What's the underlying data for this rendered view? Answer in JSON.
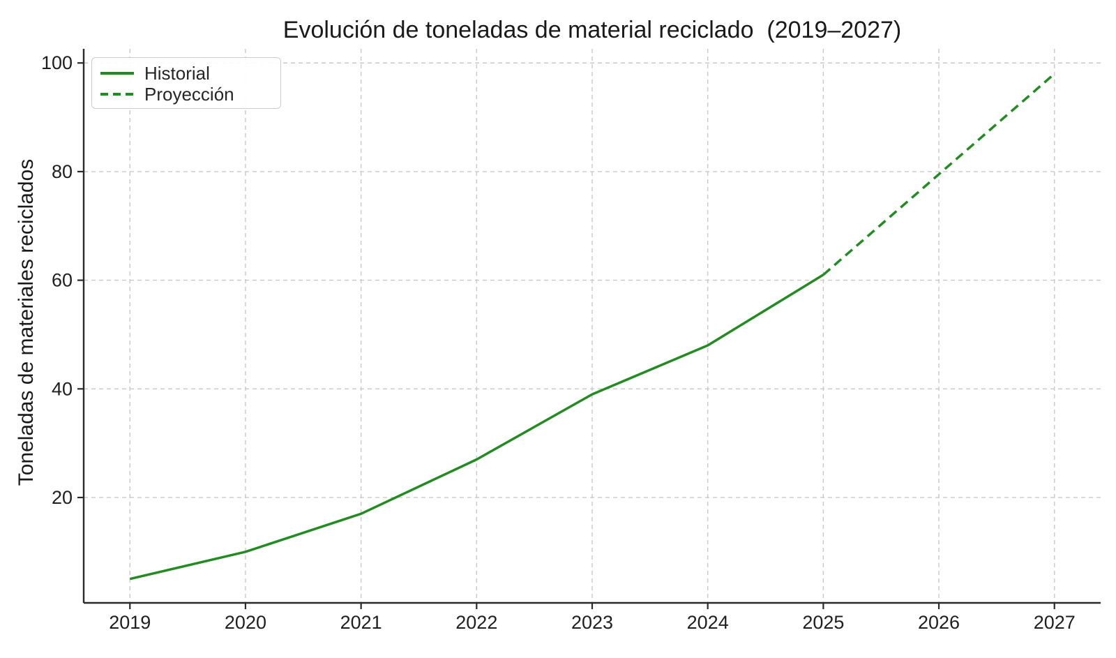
{
  "title": "Evolución de toneladas de material reciclado  (2019–2027)",
  "colors": {
    "line_green": "#228B22",
    "grid": "#c9c9c9",
    "spine": "#2a2a2a",
    "tick_text": "#1f1f1f",
    "legend_border": "#cccccc",
    "background": "#ffffff"
  },
  "chart_data": {
    "type": "line",
    "title": "Evolución de toneladas de material reciclado  (2019–2027)",
    "xlabel": "",
    "ylabel": "Toneladas de materiales reciclados",
    "categories": [
      2019,
      2020,
      2021,
      2022,
      2023,
      2024,
      2025,
      2026,
      2027
    ],
    "x_tick_labels": [
      "2019",
      "2020",
      "2021",
      "2022",
      "2023",
      "2024",
      "2025",
      "2026",
      "2027"
    ],
    "y_ticks": [
      20,
      40,
      60,
      80,
      100
    ],
    "xlim": [
      2018.6,
      2027.4
    ],
    "ylim": [
      0.6,
      102.6
    ],
    "grid": true,
    "grid_style": "dashed",
    "legend_position": "upper-left",
    "series": [
      {
        "name": "Historial",
        "style": "solid",
        "color": "#228B22",
        "x": [
          2019,
          2020,
          2021,
          2022,
          2023,
          2024,
          2025
        ],
        "values": [
          5,
          10,
          17,
          27,
          39,
          48,
          61
        ]
      },
      {
        "name": "Proyección",
        "style": "dashed",
        "color": "#228B22",
        "x": [
          2025,
          2026,
          2027
        ],
        "values": [
          61,
          79.5,
          98
        ]
      }
    ]
  }
}
